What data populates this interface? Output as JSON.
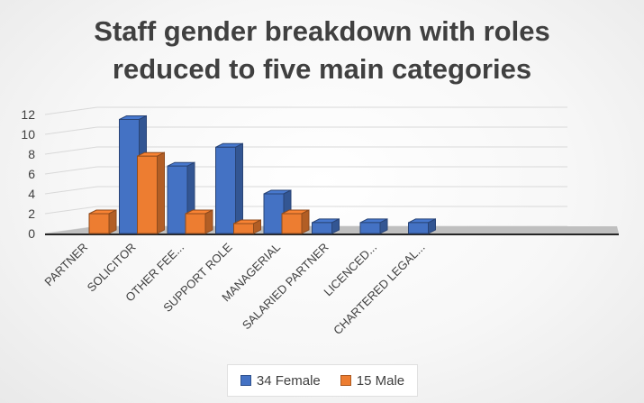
{
  "chart_data": {
    "type": "bar",
    "title": "Staff gender breakdown with roles reduced to five main categories",
    "title_lines": [
      "Staff gender breakdown with roles",
      "reduced to five main categories"
    ],
    "categories": [
      "PARTNER",
      "SOLICITOR",
      "OTHER FEE...",
      "SUPPORT ROLE",
      "MANAGERIAL",
      "SALARIED PARTNER",
      "LICENCED...",
      "CHARTERED LEGAL..."
    ],
    "series": [
      {
        "name": "34 Female",
        "color": "#4472c4",
        "values": [
          0,
          11.5,
          6.8,
          8.7,
          4.0,
          1.1,
          1.1,
          1.1
        ]
      },
      {
        "name": "15 Male",
        "color": "#ed7d31",
        "values": [
          2.0,
          7.8,
          2.0,
          1.0,
          2.0,
          0,
          0,
          0
        ]
      }
    ],
    "yticks": [
      0,
      2,
      4,
      6,
      8,
      10,
      12
    ],
    "ylim": [
      0,
      12
    ],
    "grid": true,
    "legend_position": "bottom",
    "style": "3d-column"
  }
}
